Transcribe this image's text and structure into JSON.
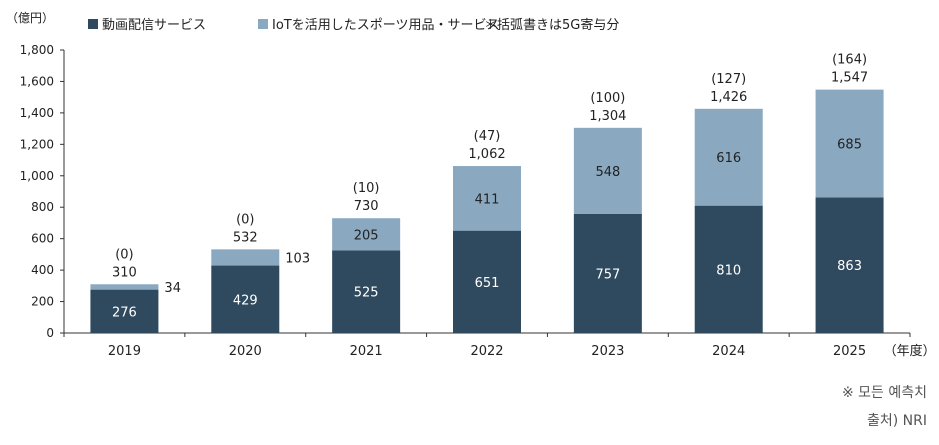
{
  "chart_data": {
    "type": "bar",
    "stacked": true,
    "unit_label": "（億円）",
    "xunit_label": "（年度）",
    "categories": [
      "2019",
      "2020",
      "2021",
      "2022",
      "2023",
      "2024",
      "2025"
    ],
    "series": [
      {
        "name": "動画配信サービス",
        "values": [
          276,
          429,
          525,
          651,
          757,
          810,
          863
        ],
        "color": "#2f4a5e"
      },
      {
        "name": "IoTを活用したスポーツ用品・サービス",
        "values": [
          34,
          103,
          205,
          411,
          548,
          616,
          685
        ],
        "color": "#8aa9c1"
      }
    ],
    "totals": [
      "310",
      "532",
      "730",
      "1,062",
      "1,304",
      "1,426",
      "1,547"
    ],
    "parenthetical": [
      "(0)",
      "(0)",
      "(10)",
      "(47)",
      "(100)",
      "(127)",
      "(164)"
    ],
    "segment_labels_bottom": [
      "276",
      "429",
      "525",
      "651",
      "757",
      "810",
      "863"
    ],
    "segment_labels_top": [
      "34",
      "103",
      "205",
      "411",
      "548",
      "616",
      "685"
    ],
    "legend_note": "＊括弧書きは5G寄与分",
    "ylim": [
      0,
      1800
    ],
    "yticks": [
      "0",
      "200",
      "400",
      "600",
      "800",
      "1,000",
      "1,200",
      "1,400",
      "1,600",
      "1,800"
    ],
    "grid": false,
    "legend_position": "top"
  },
  "footnotes": {
    "note": "※ 모든 예측치",
    "source": "출처) NRI"
  }
}
